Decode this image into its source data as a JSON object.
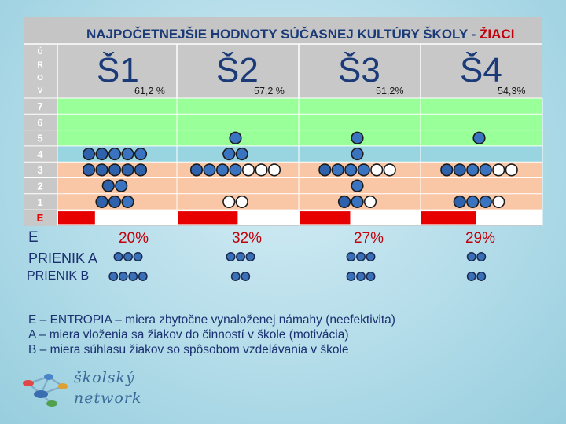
{
  "chart_data": {
    "type": "table",
    "title_main": "NAJPOČETNEJŠIE HODNOTY SÚČASNEJ KULTÚRY ŠKOLY - ",
    "title_accent": "ŽIACI",
    "level_header": [
      "Ú",
      "R",
      "O",
      "V"
    ],
    "levels": [
      "7",
      "6",
      "5",
      "4",
      "3",
      "2",
      "1",
      "E"
    ],
    "row_colors": {
      "7": "#99ff99",
      "6": "#99ff99",
      "5": "#99ff99",
      "4": "#99d5e0",
      "3": "#f9c7a6",
      "2": "#f9c7a6",
      "1": "#f9c7a6",
      "E": "#ffffff"
    },
    "columns": [
      {
        "name": "Š1",
        "pct": "61,2 %",
        "entropy": 0.2,
        "a": {
          "4": 3,
          "3": 0,
          "2": 1,
          "1": 1
        },
        "b": {
          "4": 2,
          "3": 5,
          "2": 1,
          "1": 2
        },
        "w": {
          "3": 0,
          "1": 0
        }
      },
      {
        "name": "Š2",
        "pct": "57,2 %",
        "entropy": 0.32,
        "a": {
          "5": 1,
          "4": 2,
          "3": 3,
          "1": 0
        },
        "b": {
          "5": 0,
          "4": 0,
          "3": 1,
          "1": 0
        },
        "w": {
          "3": 3,
          "1": 2
        }
      },
      {
        "name": "Š3",
        "pct": "51,2%",
        "entropy": 0.27,
        "a": {
          "5": 1,
          "4": 1,
          "3": 3,
          "2": 1,
          "1": 1
        },
        "b": {
          "3": 1,
          "1": 1
        },
        "w": {
          "3": 2,
          "1": 1
        }
      },
      {
        "name": "Š4",
        "pct": "54,3%",
        "entropy": 0.29,
        "a": {
          "5": 1,
          "3": 2,
          "1": 2
        },
        "b": {
          "3": 2,
          "1": 1
        },
        "w": {
          "3": 2,
          "1": 1
        }
      }
    ],
    "entropy_labels": [
      "20%",
      "32%",
      "27%",
      "29%"
    ],
    "prienik_a": [
      3,
      3,
      3,
      2
    ],
    "prienik_b": [
      4,
      2,
      3,
      2
    ],
    "colors": {
      "dot_dark": "#2a4a8a",
      "dot_fill": "#3a74c0",
      "red": "#e60000",
      "grid": "#ffffff"
    }
  },
  "labels": {
    "e_label": "E",
    "prienik_a_label": "PRIENIK A",
    "prienik_b_label": "PRIENIK B"
  },
  "legend": {
    "line1": "E – ENTROPIA – miera zbytočne vynaloženej námahy (neefektivita)",
    "line2": "A – miera vloženia sa žiakov do činností v škole (motivácia)",
    "line3": "B – miera súhlasu žiakov so spôsobom vzdelávania v škole"
  },
  "logo": {
    "line1": "školský",
    "line2": "network"
  }
}
